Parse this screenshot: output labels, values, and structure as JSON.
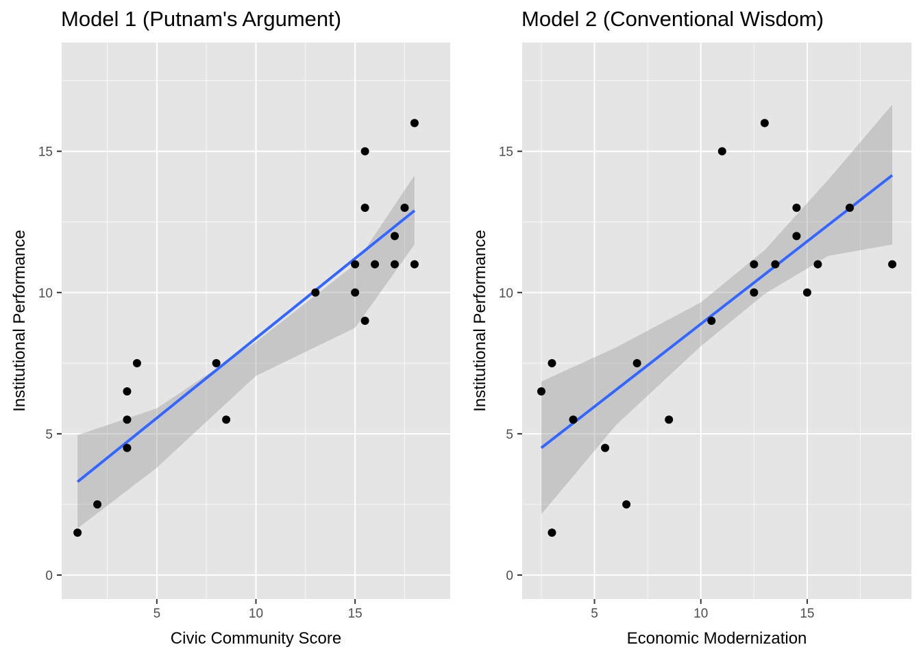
{
  "chart_data": [
    {
      "type": "scatter",
      "title": "Model 1 (Putnam's Argument)",
      "xlabel": "Civic Community Score",
      "ylabel": "Institutional Performance",
      "xlim": [
        0.2,
        19.8
      ],
      "ylim": [
        -0.85,
        18.85
      ],
      "xticks": [
        5,
        10,
        15
      ],
      "yticks": [
        0,
        5,
        10,
        15
      ],
      "grid": true,
      "points": {
        "x": [
          1,
          2,
          3.5,
          3.5,
          3.5,
          4,
          8,
          8.5,
          13,
          15,
          15,
          15.5,
          15.5,
          15.5,
          16,
          17,
          17,
          17.5,
          18,
          18
        ],
        "y": [
          1.5,
          2.5,
          4.5,
          5.5,
          6.5,
          7.5,
          7.5,
          5.5,
          10,
          10,
          11,
          9,
          13,
          15,
          11,
          12,
          11,
          13,
          16,
          11
        ]
      },
      "fit": {
        "x": [
          1,
          18
        ],
        "y": [
          3.3,
          12.9
        ]
      },
      "ci_band": {
        "x": [
          1,
          5,
          10,
          15,
          18
        ],
        "upper": [
          4.95,
          5.9,
          8.25,
          11.0,
          14.15
        ],
        "lower": [
          1.65,
          3.8,
          7.05,
          8.75,
          11.7
        ]
      },
      "colors": {
        "panel": "#e5e5e5",
        "fit_line": "#3366ff",
        "band": "#999999",
        "points": "#000000"
      }
    },
    {
      "type": "scatter",
      "title": "Model 2 (Conventional Wisdom)",
      "xlabel": "Economic Modernization",
      "ylabel": "Institutional Performance",
      "xlim": [
        1.6,
        19.9
      ],
      "ylim": [
        -0.85,
        18.85
      ],
      "xticks": [
        5,
        10,
        15
      ],
      "yticks": [
        0,
        5,
        10,
        15
      ],
      "grid": true,
      "points": {
        "x": [
          2.5,
          3,
          3,
          4,
          5.5,
          6.5,
          7,
          8.5,
          10.5,
          11,
          12.5,
          12.5,
          13,
          13.5,
          14.5,
          14.5,
          15,
          15.5,
          17,
          19
        ],
        "y": [
          6.5,
          7.5,
          1.5,
          5.5,
          4.5,
          2.5,
          7.5,
          5.5,
          9,
          15,
          11,
          10,
          16,
          11,
          13,
          12,
          10,
          11,
          13,
          11
        ]
      },
      "fit": {
        "x": [
          2.5,
          19
        ],
        "y": [
          4.5,
          14.15
        ]
      },
      "ci_band": {
        "x": [
          2.5,
          6,
          10,
          13,
          16,
          19
        ],
        "upper": [
          6.85,
          8.05,
          9.65,
          11.5,
          14.0,
          16.65
        ],
        "lower": [
          2.15,
          5.3,
          8.1,
          9.95,
          11.3,
          11.7
        ]
      },
      "colors": {
        "panel": "#e5e5e5",
        "fit_line": "#3366ff",
        "band": "#999999",
        "points": "#000000"
      }
    }
  ]
}
